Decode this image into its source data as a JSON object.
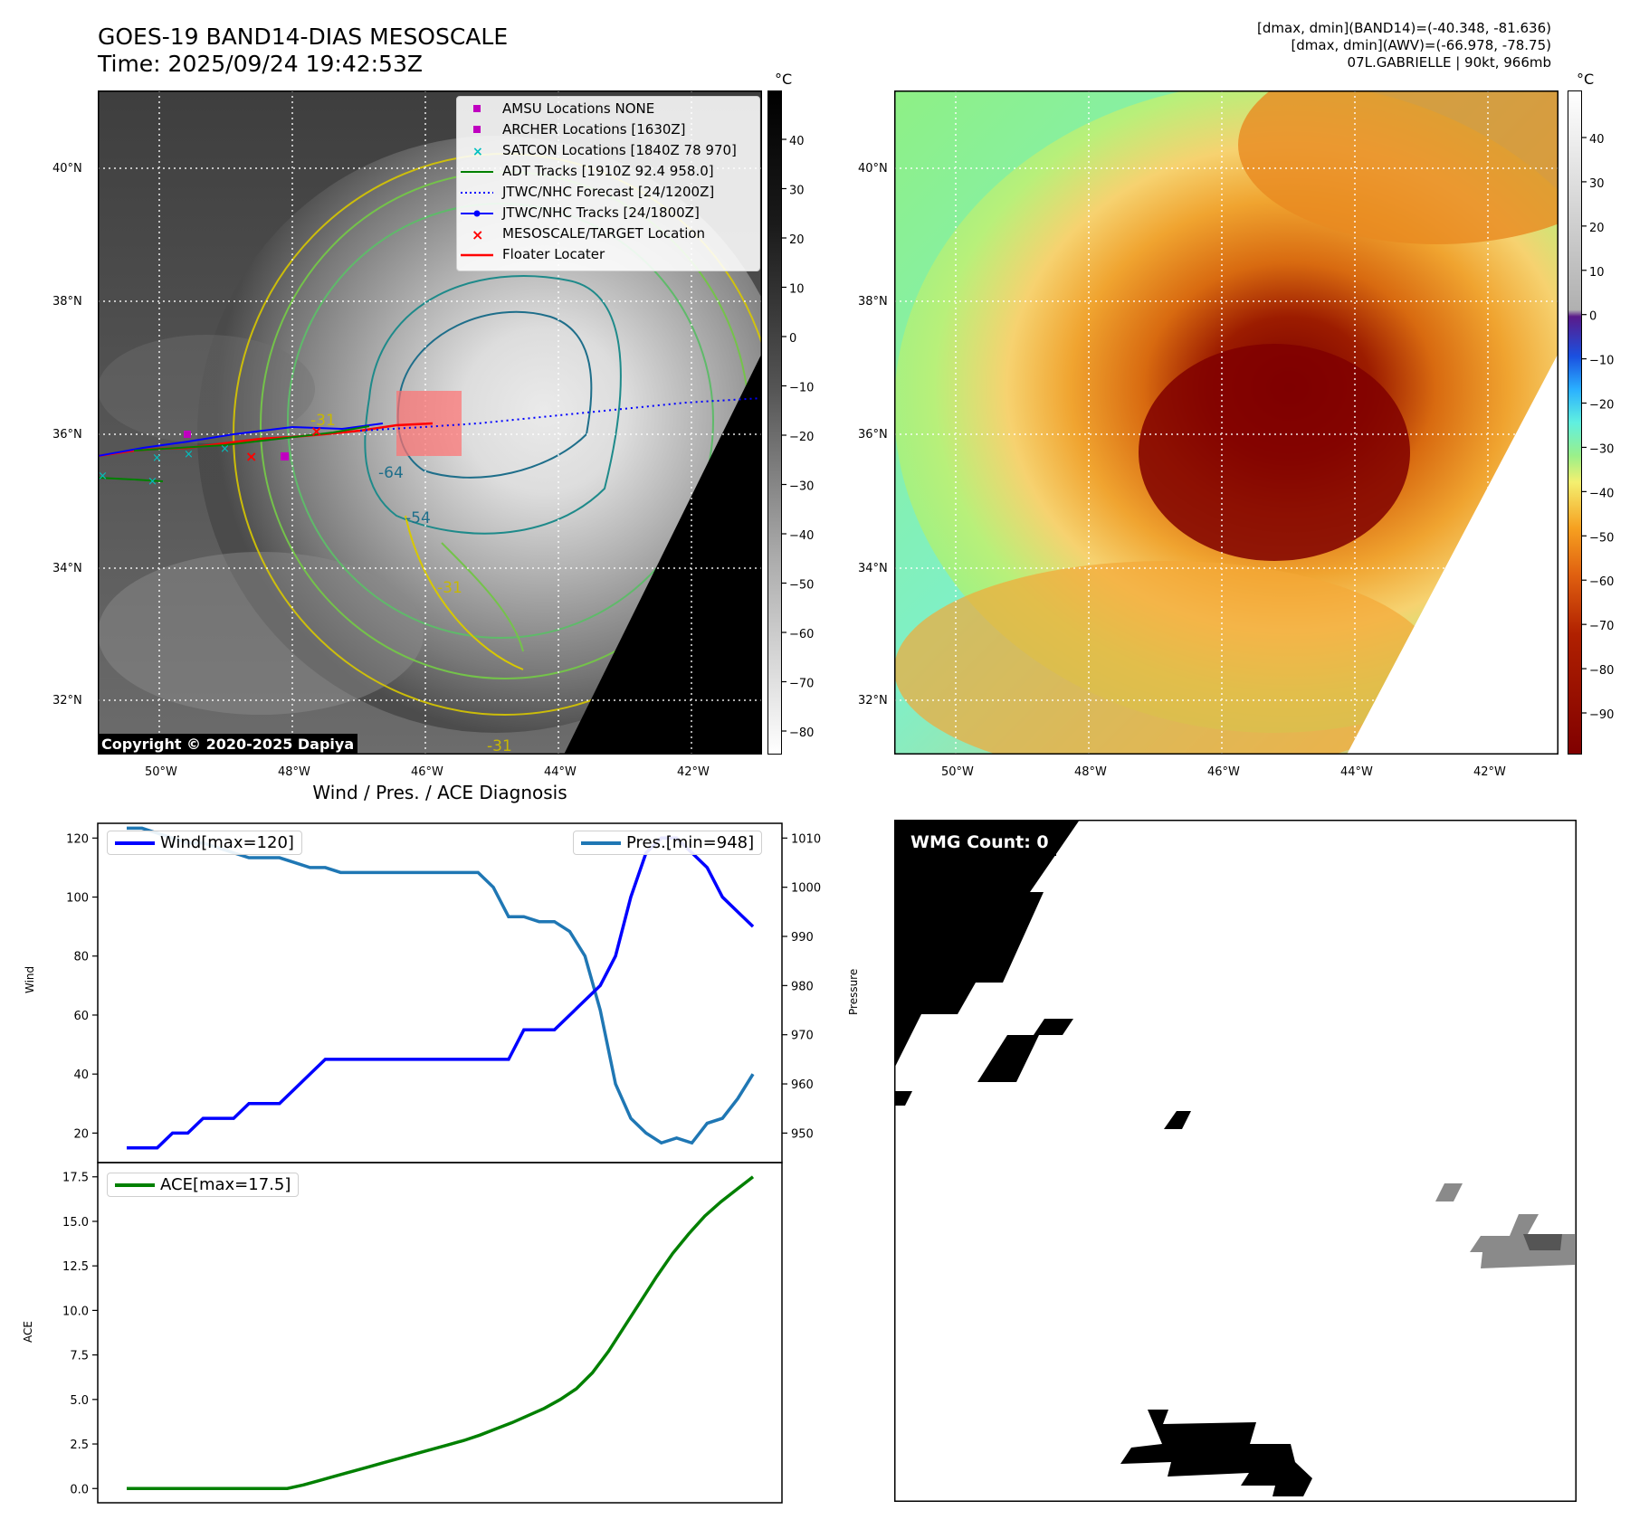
{
  "header": {
    "title_line1": "GOES-19 BAND14-DIAS MESOSCALE",
    "title_line2": "Time: 2025/09/24 19:42:53Z",
    "info_line1": "[dmax, dmin](BAND14)=(-40.348, -81.636)",
    "info_line2": "[dmax, dmin](AWV)=(-66.978, -78.75)",
    "info_line3": "07L.GABRIELLE | 90kt, 966mb"
  },
  "map": {
    "lat_labels": [
      "40°N",
      "38°N",
      "36°N",
      "34°N",
      "32°N"
    ],
    "lon_labels": [
      "50°W",
      "48°W",
      "46°W",
      "44°W",
      "42°W"
    ],
    "copyright": "Copyright © 2020-2025 Dapiya",
    "contour_labels": [
      "-64",
      "-54",
      "-31",
      "-31",
      "-31"
    ],
    "colorbar_unit": "°C",
    "gray_colorbar_ticks": [
      "40",
      "30",
      "20",
      "10",
      "0",
      "−10",
      "−20",
      "−30",
      "−40",
      "−50",
      "−60",
      "−70",
      "−80"
    ],
    "color_colorbar_ticks": [
      "40",
      "30",
      "20",
      "10",
      "0",
      "−10",
      "−20",
      "−30",
      "−40",
      "−50",
      "−60",
      "−70",
      "−80",
      "−90"
    ],
    "legend": [
      {
        "label": "AMSU Locations NONE",
        "color": "#c000c0"
      },
      {
        "label": "ARCHER Locations [1630Z]",
        "color": "#c000c0"
      },
      {
        "label": "SATCON Locations [1840Z 78 970]",
        "color": "#00c0c0"
      },
      {
        "label": "ADT Tracks [1910Z 92.4 958.0]",
        "color": "#008000"
      },
      {
        "label": "JTWC/NHC Forecast [24/1200Z]",
        "color": "#0000ff"
      },
      {
        "label": "JTWC/NHC Tracks [24/1800Z]",
        "color": "#0000ff"
      },
      {
        "label": "MESOSCALE/TARGET Location",
        "color": "#ff0000"
      },
      {
        "label": "Floater Locater",
        "color": "#ff0000"
      }
    ]
  },
  "diagnosis": {
    "title": "Wind / Pres. / ACE Diagnosis",
    "wind_axis_label": "Wind",
    "pressure_axis_label": "Pressure",
    "ace_axis_label": "ACE",
    "wind_legend": "Wind[max=120]",
    "pres_legend": "Pres.[min=948]",
    "ace_legend": "ACE[max=17.5]"
  },
  "wmg": {
    "label": "WMG Count: 0"
  },
  "chart_data": [
    {
      "type": "line",
      "title": "Wind / Pres. / ACE Diagnosis",
      "ylabel": "Wind",
      "y2label": "Pressure",
      "ylim": [
        10,
        125
      ],
      "y2lim": [
        944,
        1013
      ],
      "yticks": [
        20,
        40,
        60,
        80,
        100,
        120
      ],
      "y2ticks": [
        950,
        960,
        970,
        980,
        990,
        1000,
        1010
      ],
      "series": [
        {
          "name": "Wind[max=120]",
          "color": "#0000ff",
          "values": [
            15,
            15,
            15,
            20,
            20,
            25,
            25,
            25,
            30,
            30,
            30,
            35,
            40,
            45,
            45,
            45,
            45,
            45,
            45,
            45,
            45,
            45,
            45,
            45,
            45,
            45,
            55,
            55,
            55,
            60,
            65,
            70,
            80,
            100,
            115,
            120,
            120,
            115,
            110,
            100,
            95,
            90
          ]
        },
        {
          "name": "Pres.[min=948]",
          "color": "#1f77b4",
          "axis": "right",
          "values": [
            1012,
            1012,
            1011,
            1010,
            1009,
            1009,
            1008,
            1007,
            1006,
            1006,
            1006,
            1005,
            1004,
            1004,
            1003,
            1003,
            1003,
            1003,
            1003,
            1003,
            1003,
            1003,
            1003,
            1003,
            1000,
            994,
            994,
            993,
            993,
            991,
            986,
            975,
            960,
            953,
            950,
            948,
            949,
            948,
            952,
            953,
            957,
            962
          ]
        }
      ]
    },
    {
      "type": "line",
      "ylabel": "ACE",
      "ylim": [
        -0.8,
        18.3
      ],
      "yticks": [
        0.0,
        2.5,
        5.0,
        7.5,
        10.0,
        12.5,
        15.0,
        17.5
      ],
      "series": [
        {
          "name": "ACE[max=17.5]",
          "color": "#008000",
          "values": [
            0,
            0,
            0,
            0,
            0,
            0,
            0,
            0,
            0,
            0,
            0,
            0.2,
            0.45,
            0.7,
            0.95,
            1.2,
            1.45,
            1.7,
            1.95,
            2.2,
            2.45,
            2.7,
            3.0,
            3.35,
            3.7,
            4.1,
            4.5,
            5.0,
            5.6,
            6.5,
            7.7,
            9.1,
            10.5,
            11.9,
            13.2,
            14.3,
            15.3,
            16.1,
            16.8,
            17.5
          ]
        }
      ]
    }
  ]
}
